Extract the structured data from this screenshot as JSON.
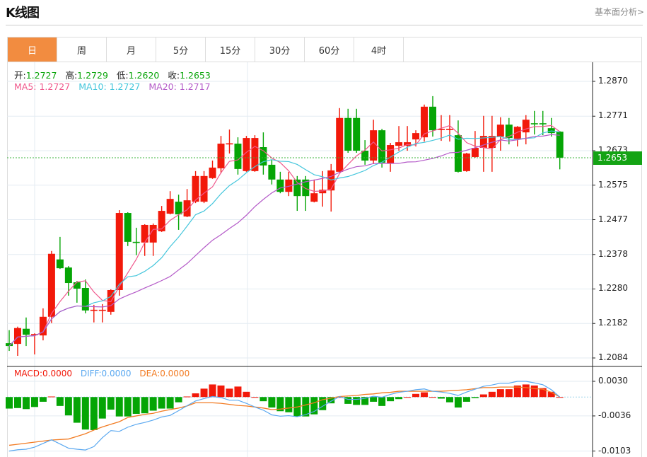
{
  "header": {
    "title": "K线图",
    "link": "基本面分析>"
  },
  "tabs": [
    {
      "label": "日",
      "active": true
    },
    {
      "label": "周"
    },
    {
      "label": "月"
    },
    {
      "label": "5分"
    },
    {
      "label": "15分"
    },
    {
      "label": "30分"
    },
    {
      "label": "60分"
    },
    {
      "label": "4时"
    }
  ],
  "ohlc": {
    "open_label": "开:",
    "open": "1.2727",
    "high_label": "高:",
    "high": "1.2729",
    "low_label": "低:",
    "low": "1.2620",
    "close_label": "收:",
    "close": "1.2653"
  },
  "ma": {
    "ma5": "MA5: 1.2727",
    "ma10": "MA10: 1.2727",
    "ma20": "MA20: 1.2717"
  },
  "macd_legend": {
    "macd": "MACD:0.0000",
    "diff": "DIFF:0.0000",
    "dea": "DEA:0.0000"
  },
  "current_price": "1.2653",
  "colors": {
    "up": "#f2190a",
    "down": "#05a505",
    "ma5": "#f0588c",
    "ma10": "#44c6dc",
    "ma20": "#b45ac8",
    "diff": "#5aa8f0",
    "dea": "#f27b22",
    "accent": "#f28c40"
  },
  "chart_data": [
    {
      "type": "candlestick",
      "title": "K线图",
      "y_ticks": [
        "1.2870",
        "1.2771",
        "1.2673",
        "1.2575",
        "1.2477",
        "1.2378",
        "1.2280",
        "1.2182",
        "1.2084"
      ],
      "ylim": [
        1.2084,
        1.287
      ],
      "candles": [
        [
          1.2126,
          1.2163,
          1.2104,
          1.2118
        ],
        [
          1.2124,
          1.2173,
          1.209,
          1.2169
        ],
        [
          1.2167,
          1.2199,
          1.2118,
          1.215
        ],
        [
          1.215,
          1.2154,
          1.2094,
          1.2152
        ],
        [
          1.2148,
          1.2225,
          1.2134,
          1.2201
        ],
        [
          1.2201,
          1.2388,
          1.2183,
          1.238
        ],
        [
          1.2364,
          1.2428,
          1.2337,
          1.2339
        ],
        [
          1.2341,
          1.2345,
          1.2261,
          1.2297
        ],
        [
          1.2299,
          1.2303,
          1.2241,
          1.2281
        ],
        [
          1.2283,
          1.2307,
          1.2211,
          1.2219
        ],
        [
          1.222,
          1.2235,
          1.2185,
          1.2221
        ],
        [
          1.222,
          1.2237,
          1.2185,
          1.2221
        ],
        [
          1.2215,
          1.2279,
          1.2207,
          1.2277
        ],
        [
          1.2277,
          1.2504,
          1.2261,
          1.2496
        ],
        [
          1.2496,
          1.2498,
          1.2402,
          1.2414
        ],
        [
          1.2414,
          1.2454,
          1.2376,
          1.2413
        ],
        [
          1.2412,
          1.2464,
          1.2374,
          1.2462
        ],
        [
          1.2412,
          1.2466,
          1.2374,
          1.2462
        ],
        [
          1.2444,
          1.2516,
          1.2442,
          1.2502
        ],
        [
          1.2494,
          1.2558,
          1.2492,
          1.2536
        ],
        [
          1.2528,
          1.2548,
          1.2448,
          1.2492
        ],
        [
          1.2486,
          1.2564,
          1.2484,
          1.2532
        ],
        [
          1.2528,
          1.2615,
          1.2524,
          1.2601
        ],
        [
          1.2528,
          1.2615,
          1.2524,
          1.2601
        ],
        [
          1.2595,
          1.2645,
          1.2593,
          1.2625
        ],
        [
          1.2623,
          1.2715,
          1.2609,
          1.2693
        ],
        [
          1.2693,
          1.2733,
          1.2665,
          1.2694
        ],
        [
          1.2693,
          1.2711,
          1.2605,
          1.2621
        ],
        [
          1.2615,
          1.2715,
          1.2613,
          1.2709
        ],
        [
          1.2615,
          1.2717,
          1.2613,
          1.2709
        ],
        [
          1.2683,
          1.2725,
          1.2605,
          1.2631
        ],
        [
          1.2633,
          1.2647,
          1.2577,
          1.2591
        ],
        [
          1.2591,
          1.2613,
          1.2552,
          1.2556
        ],
        [
          1.2556,
          1.2613,
          1.2544,
          1.2591
        ],
        [
          1.2591,
          1.2601,
          1.2502,
          1.2544
        ],
        [
          1.2591,
          1.2601,
          1.2502,
          1.2544
        ],
        [
          1.2528,
          1.2591,
          1.2526,
          1.2552
        ],
        [
          1.2552,
          1.2615,
          1.2514,
          1.2562
        ],
        [
          1.256,
          1.2635,
          1.25,
          1.2617
        ],
        [
          1.2613,
          1.2794,
          1.2611,
          1.2766
        ],
        [
          1.2766,
          1.2792,
          1.2667,
          1.2673
        ],
        [
          1.2766,
          1.2792,
          1.2667,
          1.2673
        ],
        [
          1.2673,
          1.2703,
          1.2633,
          1.2645
        ],
        [
          1.2645,
          1.2761,
          1.2635,
          1.2731
        ],
        [
          1.2731,
          1.2735,
          1.2625,
          1.2639
        ],
        [
          1.2637,
          1.2695,
          1.2613,
          1.2689
        ],
        [
          1.2687,
          1.2743,
          1.2673,
          1.2697
        ],
        [
          1.2687,
          1.2743,
          1.2673,
          1.2697
        ],
        [
          1.2705,
          1.2731,
          1.2685,
          1.2723
        ],
        [
          1.2711,
          1.2804,
          1.2699,
          1.2798
        ],
        [
          1.2798,
          1.2828,
          1.2713,
          1.2731
        ],
        [
          1.2733,
          1.2774,
          1.2701,
          1.2735
        ],
        [
          1.2733,
          1.2774,
          1.2699,
          1.2735
        ],
        [
          1.2717,
          1.2759,
          1.2611,
          1.2613
        ],
        [
          1.2615,
          1.2667,
          1.2613,
          1.2665
        ],
        [
          1.2655,
          1.2729,
          1.2653,
          1.2681
        ],
        [
          1.2681,
          1.2772,
          1.2613,
          1.2715
        ],
        [
          1.2681,
          1.2772,
          1.2613,
          1.2715
        ],
        [
          1.2713,
          1.2768,
          1.2673,
          1.2747
        ],
        [
          1.2747,
          1.2766,
          1.2691,
          1.2709
        ],
        [
          1.2707,
          1.2743,
          1.2685,
          1.2741
        ],
        [
          1.2725,
          1.2774,
          1.2691,
          1.2761
        ],
        [
          1.2751,
          1.2786,
          1.2719,
          1.2749
        ],
        [
          1.2751,
          1.2786,
          1.2717,
          1.2749
        ],
        [
          1.2737,
          1.2766,
          1.2713,
          1.2723
        ],
        [
          1.2727,
          1.2729,
          1.262,
          1.2653
        ]
      ],
      "candle_fields": [
        "open",
        "high",
        "low",
        "close"
      ],
      "moving_averages": [
        "MA5",
        "MA10",
        "MA20"
      ]
    },
    {
      "type": "bar+line",
      "title": "MACD",
      "y_ticks": [
        "0.0030",
        "-0.0036",
        "-0.0103"
      ],
      "ylim": [
        -0.0103,
        0.003
      ],
      "macd": [
        -0.0022,
        -0.0021,
        -0.0023,
        -0.0019,
        -0.0009,
        0.0001,
        -0.0017,
        -0.0035,
        -0.0049,
        -0.0062,
        -0.0063,
        -0.0041,
        -0.0024,
        -0.0037,
        -0.0037,
        -0.0032,
        -0.0031,
        -0.0026,
        -0.0022,
        -0.0022,
        -0.001,
        0.0001,
        0.0007,
        0.0016,
        0.0024,
        0.0022,
        0.0016,
        0.002,
        0.001,
        0.0,
        -0.0008,
        -0.002,
        -0.0027,
        -0.0029,
        -0.0037,
        -0.0037,
        -0.0033,
        -0.0025,
        -0.0012,
        0.0,
        -0.0013,
        -0.0015,
        -0.0015,
        -0.0009,
        -0.0017,
        -0.0008,
        -0.0004,
        0.0,
        0.0006,
        0.0009,
        0.0,
        -0.0003,
        -0.001,
        -0.002,
        -0.0009,
        -0.0002,
        0.0005,
        0.001,
        0.0015,
        0.0015,
        0.0022,
        0.0024,
        0.0022,
        0.0017,
        0.001,
        0.0
      ],
      "dea": [
        -0.0092,
        -0.009,
        -0.0088,
        -0.0086,
        -0.0084,
        -0.0082,
        -0.0081,
        -0.008,
        -0.0075,
        -0.007,
        -0.0063,
        -0.0057,
        -0.0052,
        -0.0047,
        -0.0039,
        -0.0036,
        -0.0033,
        -0.0031,
        -0.0027,
        -0.0024,
        -0.0021,
        -0.0017,
        -0.0011,
        -0.0011,
        -0.0011,
        -0.0012,
        -0.0014,
        -0.0016,
        -0.0017,
        -0.0019,
        -0.0021,
        -0.0024,
        -0.0023,
        -0.0021,
        -0.0019,
        -0.0015,
        -0.0011,
        -0.0005,
        -0.0002,
        0.0001,
        0.0002,
        0.0003,
        0.0005,
        0.0006,
        0.0008,
        0.0009,
        0.0011,
        0.0011,
        0.0011,
        0.0011,
        0.0011,
        0.0011,
        0.0012,
        0.0013,
        0.0014,
        0.0016,
        0.0018,
        0.0018,
        0.0019,
        0.0019,
        0.0019,
        0.0018,
        0.0016,
        0.0015,
        0.0009,
        0.0
      ]
    }
  ]
}
